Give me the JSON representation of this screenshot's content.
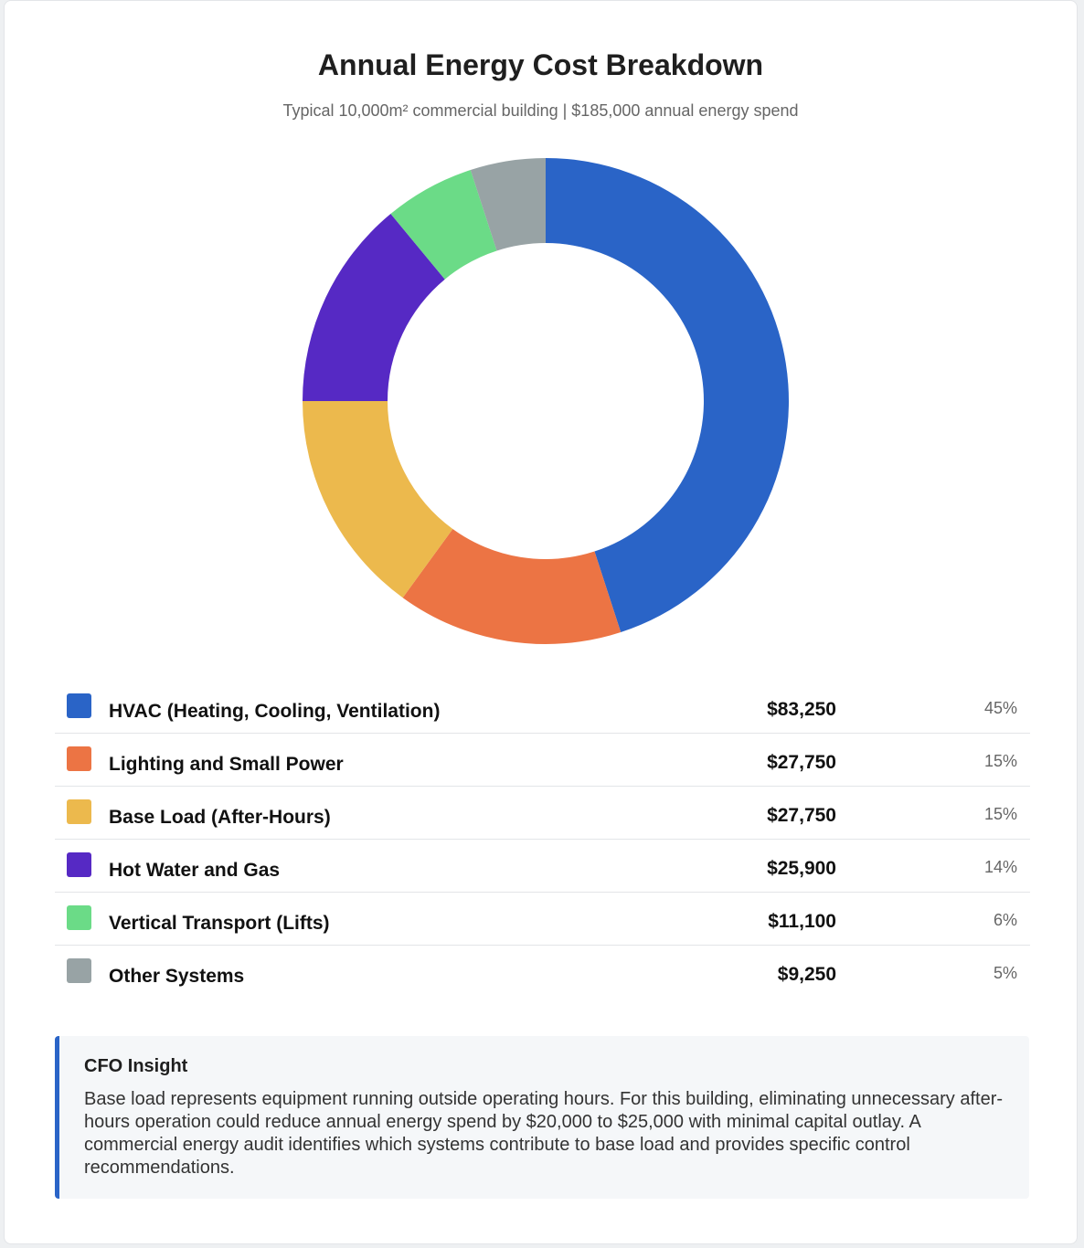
{
  "chart_data": {
    "type": "pie",
    "title": "Annual Energy Cost Breakdown",
    "subtitle": "Typical 10,000m² commercial building | $185,000 annual energy spend",
    "categories": [
      "HVAC (Heating, Cooling, Ventilation)",
      "Lighting and Small Power",
      "Base Load (After-Hours)",
      "Hot Water and Gas",
      "Vertical Transport (Lifts)",
      "Other Systems"
    ],
    "values": [
      45,
      15,
      15,
      14,
      6,
      5
    ],
    "amounts": [
      83250,
      27750,
      27750,
      25900,
      11100,
      9250
    ],
    "colors": [
      "#2a64c7",
      "#ec7444",
      "#ecb94d",
      "#5629c4",
      "#6bdb87",
      "#98a3a5"
    ],
    "donut": true
  },
  "legend": [
    {
      "label": "HVAC (Heating, Cooling, Ventilation)",
      "amount": "$83,250",
      "percent": "45%"
    },
    {
      "label": "Lighting and Small Power",
      "amount": "$27,750",
      "percent": "15%"
    },
    {
      "label": "Base Load (After-Hours)",
      "amount": "$27,750",
      "percent": "15%"
    },
    {
      "label": "Hot Water and Gas",
      "amount": "$25,900",
      "percent": "14%"
    },
    {
      "label": "Vertical Transport (Lifts)",
      "amount": "$11,100",
      "percent": "6%"
    },
    {
      "label": "Other Systems",
      "amount": "$9,250",
      "percent": "5%"
    }
  ],
  "insight": {
    "title": "CFO Insight",
    "body": "Base load represents equipment running outside operating hours. For this building, eliminating unnecessary after-hours operation could reduce annual energy spend by $20,000 to $25,000 with minimal capital outlay. A commercial energy audit identifies which systems contribute to base load and provides specific control recommendations."
  }
}
